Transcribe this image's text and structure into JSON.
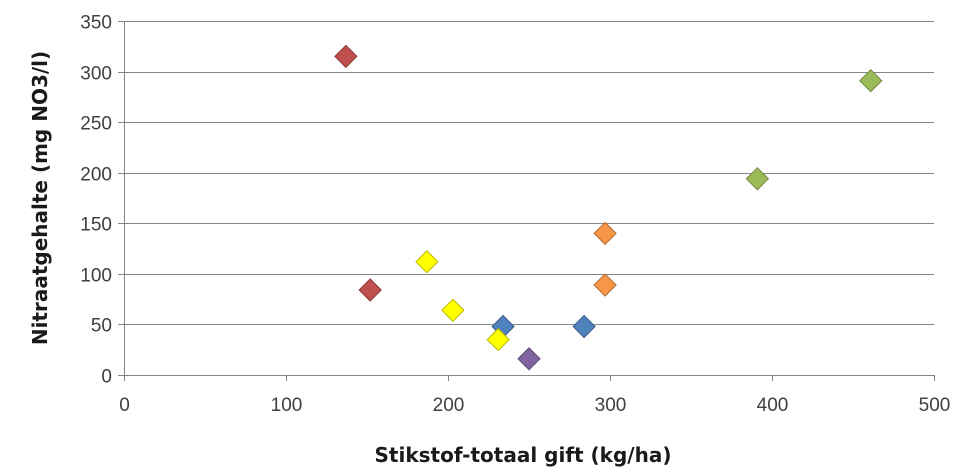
{
  "chart_data": {
    "type": "scatter",
    "title": "",
    "xlabel": "Stikstof-totaal gift (kg/ha)",
    "ylabel": "Nitraatgehalte (mg NO3/l)",
    "xlim": [
      0,
      500
    ],
    "ylim": [
      0,
      350
    ],
    "x_ticks": [
      0,
      100,
      200,
      300,
      400,
      500
    ],
    "y_ticks": [
      0,
      50,
      100,
      150,
      200,
      250,
      300,
      350
    ],
    "grid": "horizontal",
    "legend": "none",
    "marker": "diamond",
    "series": [
      {
        "color": "#c0504d",
        "points": [
          {
            "x": 137,
            "y": 315
          },
          {
            "x": 152,
            "y": 84
          }
        ]
      },
      {
        "color": "#4f81bd",
        "points": [
          {
            "x": 234,
            "y": 48
          },
          {
            "x": 284,
            "y": 48
          }
        ]
      },
      {
        "color": "#9bbb59",
        "points": [
          {
            "x": 391,
            "y": 194
          },
          {
            "x": 461,
            "y": 291
          }
        ]
      },
      {
        "color": "#f79646",
        "points": [
          {
            "x": 297,
            "y": 140
          },
          {
            "x": 297,
            "y": 89
          }
        ]
      },
      {
        "color": "#ffff00",
        "points": [
          {
            "x": 187,
            "y": 112
          },
          {
            "x": 203,
            "y": 64
          },
          {
            "x": 231,
            "y": 35
          }
        ]
      },
      {
        "color": "#8064a2",
        "points": [
          {
            "x": 250,
            "y": 16
          }
        ]
      }
    ]
  }
}
